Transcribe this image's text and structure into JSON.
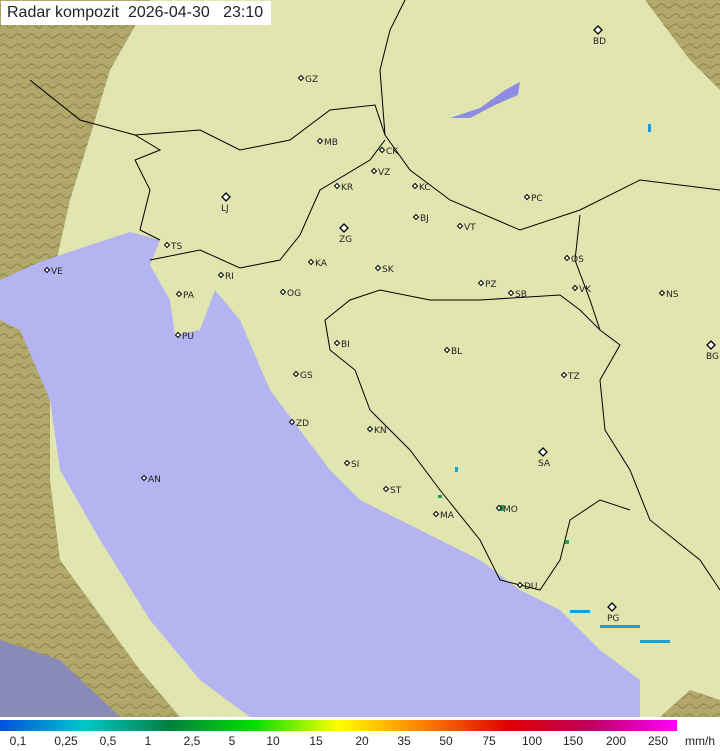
{
  "title": "Radar kompozit  2026-04-30   23:10",
  "colors": {
    "sea": "#b4b4f0",
    "coverage_land": "#e6eab8",
    "outside_land": "#a8a070",
    "border": "#000000",
    "precip": "#1aa0d8"
  },
  "cities": [
    {
      "code": "BD",
      "major": true
    },
    {
      "code": "GZ"
    },
    {
      "code": "MB"
    },
    {
      "code": "CK"
    },
    {
      "code": "VZ"
    },
    {
      "code": "KR"
    },
    {
      "code": "KC"
    },
    {
      "code": "PC"
    },
    {
      "code": "LJ",
      "major": true
    },
    {
      "code": "ZG",
      "major": true
    },
    {
      "code": "BJ"
    },
    {
      "code": "VT"
    },
    {
      "code": "TS"
    },
    {
      "code": "VE"
    },
    {
      "code": "KA"
    },
    {
      "code": "SK"
    },
    {
      "code": "OS"
    },
    {
      "code": "NS"
    },
    {
      "code": "RI"
    },
    {
      "code": "PA"
    },
    {
      "code": "OG"
    },
    {
      "code": "PZ"
    },
    {
      "code": "SB"
    },
    {
      "code": "VK"
    },
    {
      "code": "PU"
    },
    {
      "code": "BI"
    },
    {
      "code": "BL"
    },
    {
      "code": "BG",
      "major": true
    },
    {
      "code": "GS"
    },
    {
      "code": "TZ"
    },
    {
      "code": "ZD"
    },
    {
      "code": "KN"
    },
    {
      "code": "SA",
      "major": true
    },
    {
      "code": "SI"
    },
    {
      "code": "AN"
    },
    {
      "code": "ST"
    },
    {
      "code": "MA"
    },
    {
      "code": "MO"
    },
    {
      "code": "DU"
    },
    {
      "code": "PG",
      "major": true
    }
  ],
  "legend": {
    "unit": "mm/h",
    "ticks": [
      "0,1",
      "0,25",
      "0,5",
      "1",
      "2,5",
      "5",
      "10",
      "15",
      "20",
      "35",
      "50",
      "75",
      "100",
      "150",
      "200",
      "250"
    ],
    "gradient": [
      "#0050e0",
      "#00c8c8",
      "#008040",
      "#00e000",
      "#ffff00",
      "#ff8000",
      "#e00000",
      "#c00060",
      "#ff00ff"
    ]
  }
}
